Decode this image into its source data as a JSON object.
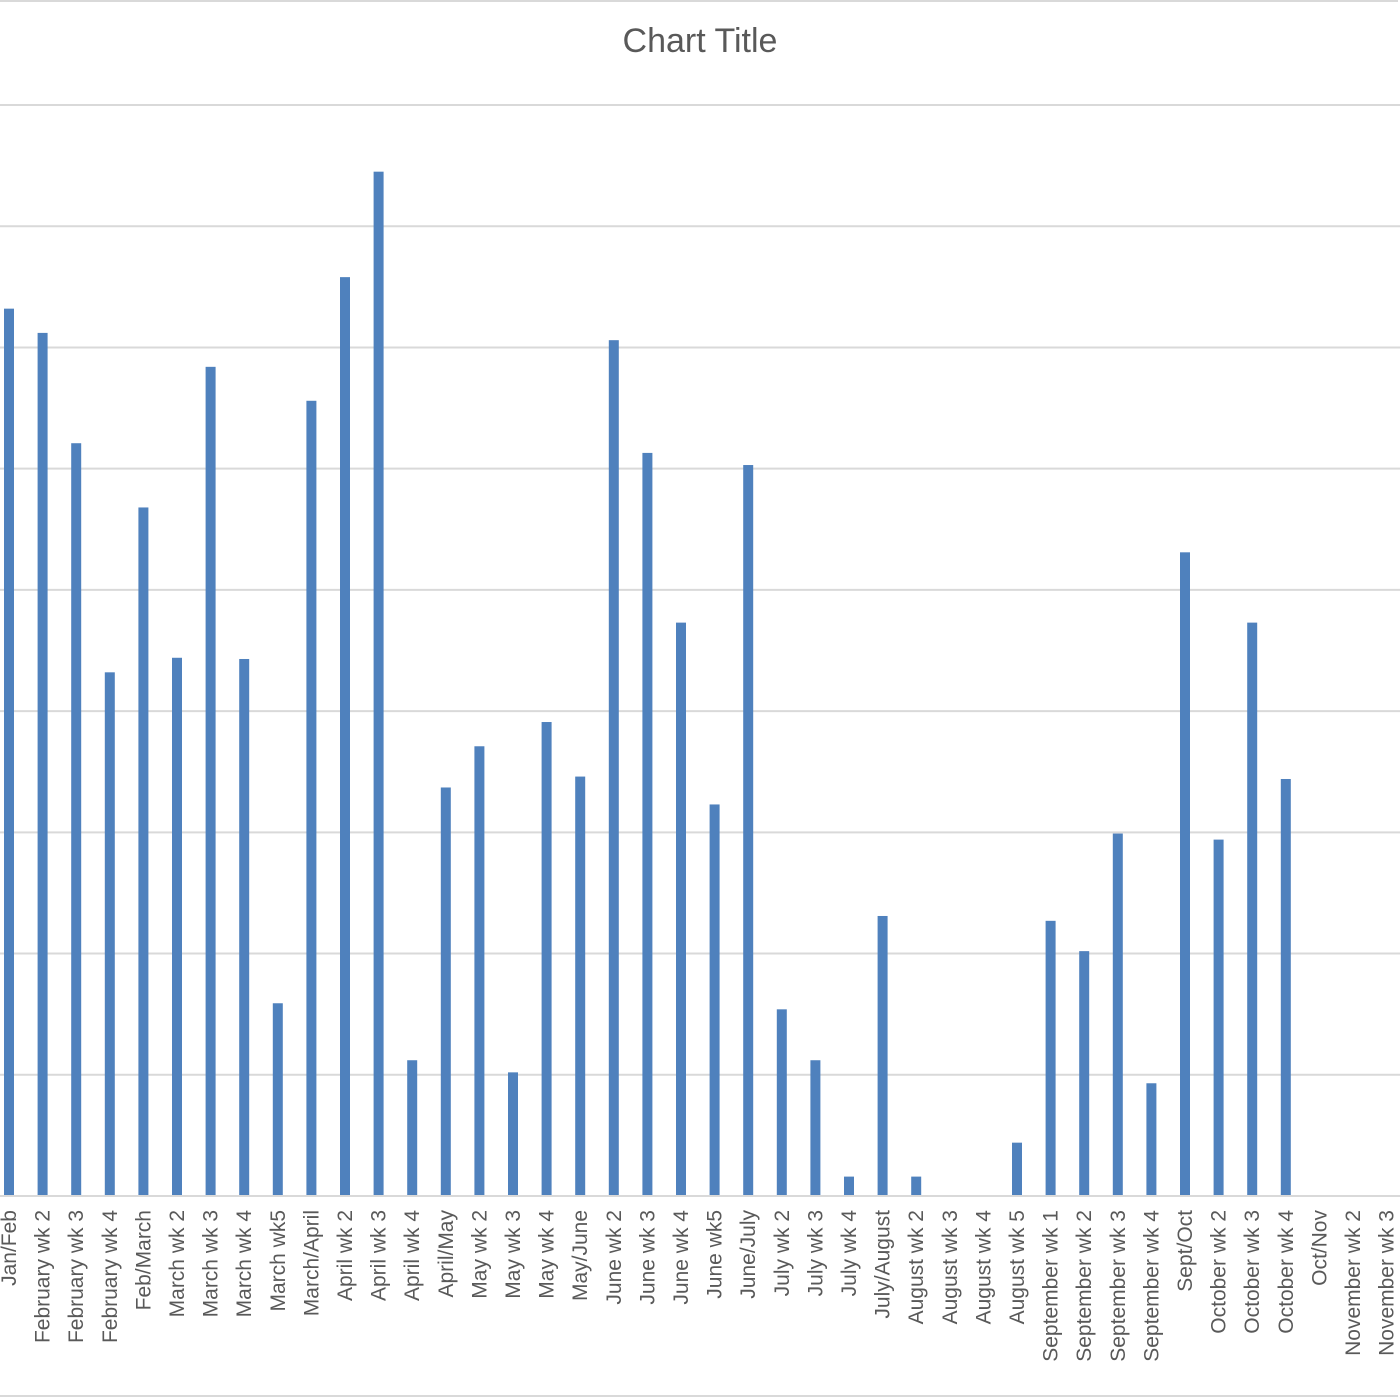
{
  "chart_data": {
    "type": "bar",
    "title": "Chart Title",
    "xlabel": "",
    "ylabel": "",
    "ylim": [
      0,
      9
    ],
    "grid": true,
    "bar_color": "#4f81bd",
    "categories": [
      "Jan/Feb",
      "February wk 2",
      "February wk 3",
      "February wk 4",
      "Feb/March",
      "March wk 2",
      "March wk 3",
      "March wk 4",
      "March wk5",
      "March/April",
      "April wk 2",
      "April wk 3",
      "April wk 4",
      "April/May",
      "May wk 2",
      "May wk 3",
      "May wk 4",
      "May/June",
      "June wk 2",
      "June wk 3",
      "June wk 4",
      "June wk5",
      "June/July",
      "July wk 2",
      "July wk 3",
      "July wk 4",
      "July/August",
      "August wk 2",
      "August wk 3",
      "August wk 4",
      "August wk 5",
      "September wk 1",
      "September wk 2",
      "September wk 3",
      "September wk 4",
      "Sept/Oct",
      "October wk 2",
      "October wk 3",
      "October wk 4",
      "Oct/Nov",
      "November wk 2",
      "November wk 3"
    ],
    "values": [
      7.32,
      7.12,
      6.21,
      4.32,
      5.68,
      4.44,
      6.84,
      4.43,
      1.59,
      6.56,
      7.58,
      8.45,
      1.12,
      3.37,
      3.71,
      1.02,
      3.91,
      3.46,
      7.06,
      6.13,
      4.73,
      3.23,
      6.03,
      1.54,
      1.12,
      0.16,
      2.31,
      0.16,
      0,
      0,
      0.44,
      2.27,
      2.02,
      2.99,
      0.93,
      5.31,
      2.94,
      4.73,
      3.44,
      0,
      0,
      0
    ]
  }
}
